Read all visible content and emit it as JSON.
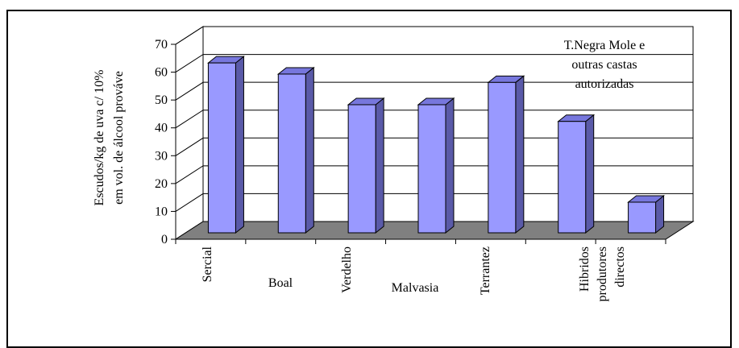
{
  "chart_data": {
    "type": "bar",
    "ylabel_lines": [
      "Escudos/kg de uva c/ 10%",
      "em vol. de álcool prováve"
    ],
    "ylim": [
      0,
      70
    ],
    "yticks": [
      0,
      10,
      20,
      30,
      40,
      50,
      60,
      70
    ],
    "grid": true,
    "categories": [
      [
        "Sercial"
      ],
      [
        "Boal"
      ],
      [
        "Verdelho"
      ],
      [
        "Malvasia"
      ],
      [
        "Terrantez"
      ],
      [
        "Hibridos",
        "produtores",
        "directos"
      ],
      [
        "T.Negra Mole e",
        "outras castas",
        "autorizadas"
      ]
    ],
    "values": [
      61,
      57,
      46,
      46,
      54,
      40,
      11
    ],
    "bar_color": "#9999ff",
    "bar_side_color": "#5a5aa8",
    "bar_top_color": "#7777dd",
    "floor_color": "#808080"
  }
}
